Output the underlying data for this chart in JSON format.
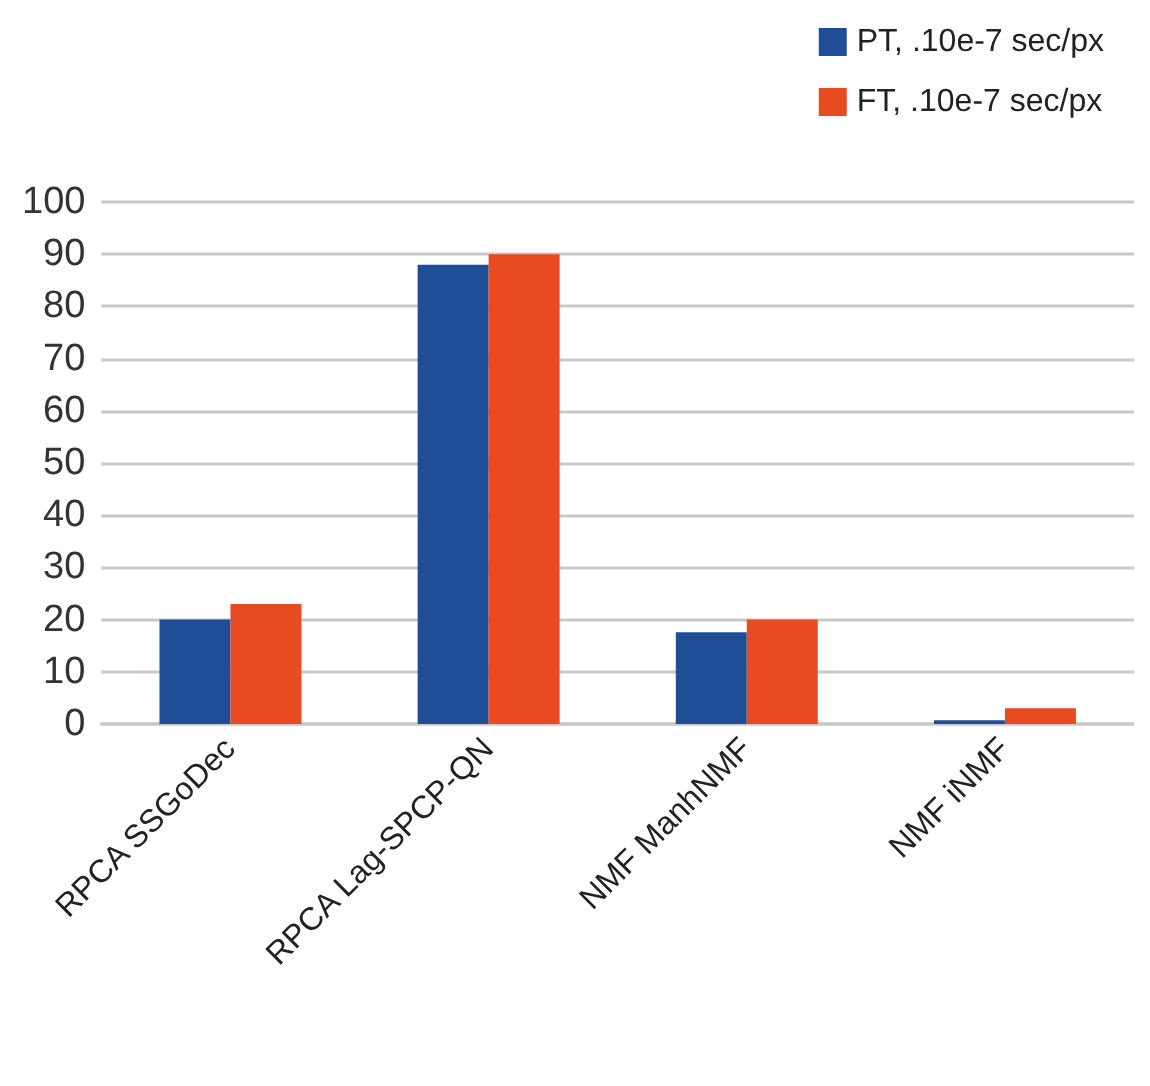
{
  "chart_data": {
    "type": "bar",
    "categories": [
      "RPCA SSGoDec",
      "RPCA Lag-SPCP-QN",
      "NMF ManhNMF",
      "NMF iNMF"
    ],
    "series": [
      {
        "name": "PT, .10e-7 sec/px",
        "color": "#1f4e96",
        "values": [
          20,
          88,
          17.6,
          0.7
        ]
      },
      {
        "name": "FT, .10e-7 sec/px",
        "color": "#e84a22",
        "values": [
          23,
          90,
          20,
          3
        ]
      }
    ],
    "ylim": [
      0,
      100
    ],
    "yticks": [
      0,
      10,
      20,
      30,
      40,
      50,
      60,
      70,
      80,
      90,
      100
    ],
    "grid": "y",
    "legend": "top right"
  }
}
